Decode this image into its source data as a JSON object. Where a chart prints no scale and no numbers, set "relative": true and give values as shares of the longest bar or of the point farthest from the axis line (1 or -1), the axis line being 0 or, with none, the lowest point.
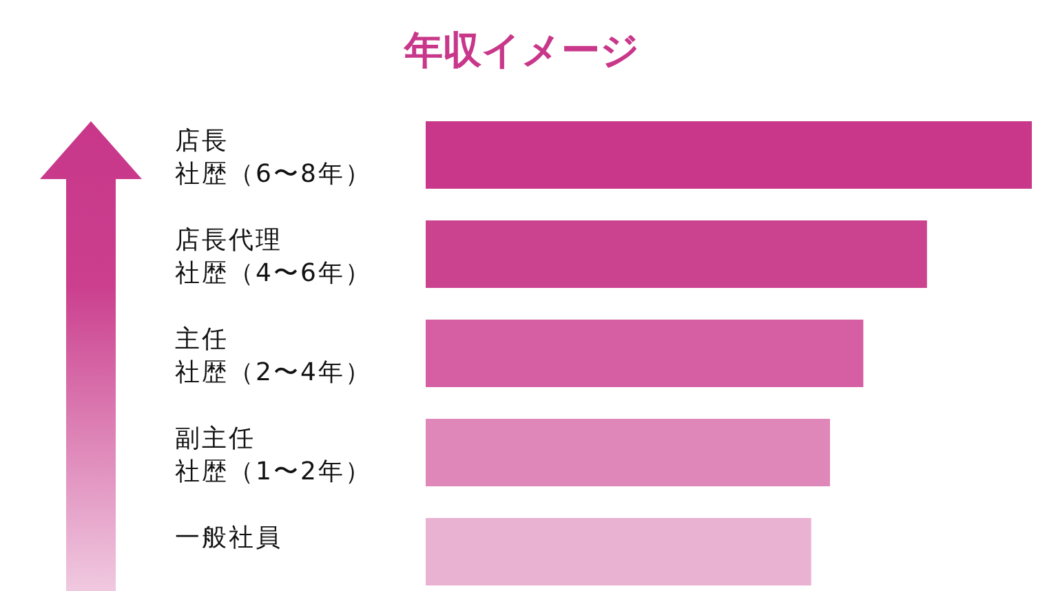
{
  "chart_data": {
    "type": "bar",
    "orientation": "horizontal",
    "relative": true,
    "title": "年収イメージ",
    "categories": [
      "店長社歴（6〜8年）",
      "店長代理社歴（4〜6年）",
      "主任社歴（2〜4年）",
      "副主任社歴（1〜2年）",
      "一般社員"
    ],
    "values": [
      1,
      0.827,
      0.722,
      0.667,
      0.636
    ],
    "colors": [
      "#c8378a",
      "#cb428f",
      "#d65fa3",
      "#df87b9",
      "#eab2d2"
    ]
  }
}
